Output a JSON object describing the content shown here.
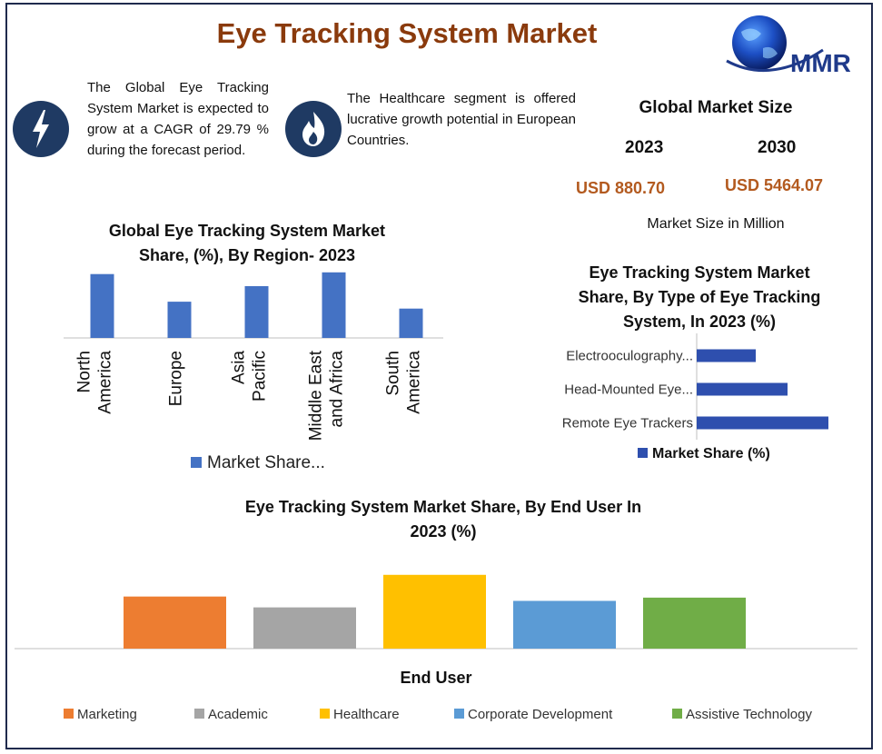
{
  "header": {
    "title": "Eye Tracking System Market",
    "logo_text": "MMR"
  },
  "info_blocks": [
    {
      "icon": "lightning-icon",
      "text": "The Global Eye Tracking System Market is expected to grow at a CAGR of 29.79 % during the forecast period."
    },
    {
      "icon": "flame-icon",
      "text": "The Healthcare segment is offered lucrative growth potential in European Countries."
    }
  ],
  "market_size": {
    "title": "Global Market Size",
    "year_a": "2023",
    "year_b": "2030",
    "value_a": "USD 880.70",
    "value_b": "USD 5464.07",
    "unit": "Market Size in Million"
  },
  "colors": {
    "title": "#8a3a0c",
    "value": "#b35a1f",
    "icon_bg": "#1f3a63",
    "bar_blue": "#4472c4",
    "frame": "#1f2a4d"
  },
  "chart_data": [
    {
      "type": "bar",
      "title": "Global Eye Tracking System Market Share, (%), By Region- 2023",
      "categories": [
        "North America",
        "Europe",
        "Asia Pacific",
        "Middle East and Africa",
        "South America"
      ],
      "series": [
        {
          "name": "Market Share...",
          "values": [
            37,
            21,
            30,
            38,
            17
          ]
        }
      ],
      "ylim": [
        0,
        40
      ],
      "grid": false,
      "legend": "bottom",
      "color": "#4472c4"
    },
    {
      "type": "bar",
      "orientation": "horizontal",
      "title": "Eye Tracking System Market Share, By Type of Eye Tracking System, In 2023 (%)",
      "categories": [
        "Electrooculography...",
        "Head-Mounted Eye...",
        "Remote Eye Trackers"
      ],
      "series": [
        {
          "name": "Market Share (%)",
          "values": [
            26,
            40,
            58
          ]
        }
      ],
      "xlim": [
        0,
        60
      ],
      "grid": false,
      "legend": "bottom"
    },
    {
      "type": "bar",
      "title": "Eye Tracking System Market  Share, By End User In 2023 (%)",
      "xlabel": "End User",
      "categories": [
        "Marketing",
        "Academic",
        "Healthcare",
        "Corporate Development",
        "Assistive Technology"
      ],
      "values": [
        24,
        19,
        34,
        22,
        23.5
      ],
      "colors": [
        "#ed7d31",
        "#a5a5a5",
        "#ffc000",
        "#5b9bd5",
        "#70ad47"
      ],
      "ylim": [
        0,
        36
      ],
      "grid": false,
      "legend": "bottom"
    }
  ]
}
